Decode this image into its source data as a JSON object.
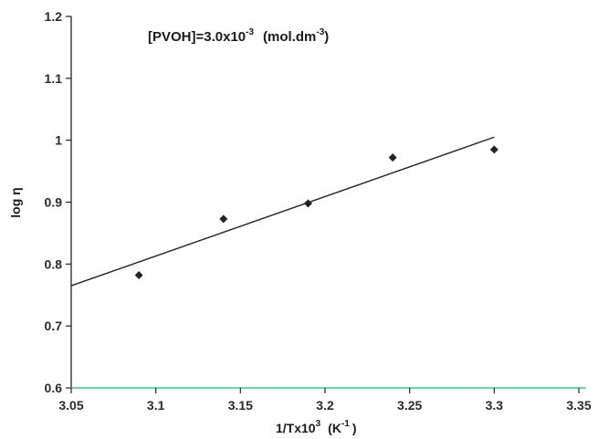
{
  "chart_data": {
    "type": "scatter",
    "title_main": "[PVOH]=3.0x10",
    "title_exp": "-3",
    "title_unit": "(mol.dm",
    "title_unit_exp": "-3",
    "title_close": ")",
    "xlabel_main": "1/Tx10",
    "xlabel_exp": "3",
    "xlabel_unit": "(K",
    "xlabel_unit_exp": "-1",
    "xlabel_close": ")",
    "ylabel": "log η",
    "xlim": [
      3.05,
      3.35
    ],
    "ylim": [
      0.6,
      1.2
    ],
    "x_ticks": [
      "3.05",
      "3.1",
      "3.15",
      "3.2",
      "3.25",
      "3.3",
      "3.35"
    ],
    "y_ticks": [
      "0.6",
      "0.7",
      "0.8",
      "0.9",
      "1",
      "1.1",
      "1.2"
    ],
    "points": [
      {
        "x": 3.09,
        "y": 0.782
      },
      {
        "x": 3.14,
        "y": 0.873
      },
      {
        "x": 3.19,
        "y": 0.898
      },
      {
        "x": 3.24,
        "y": 0.972
      },
      {
        "x": 3.3,
        "y": 0.985
      }
    ],
    "fit_line": {
      "x": [
        3.05,
        3.3
      ],
      "y": [
        0.765,
        1.005
      ]
    },
    "colors": {
      "axis": "#222222",
      "points": "#222222",
      "line": "#222222",
      "baseline": "#33cc99",
      "ylabel": "#b05a2a"
    }
  }
}
